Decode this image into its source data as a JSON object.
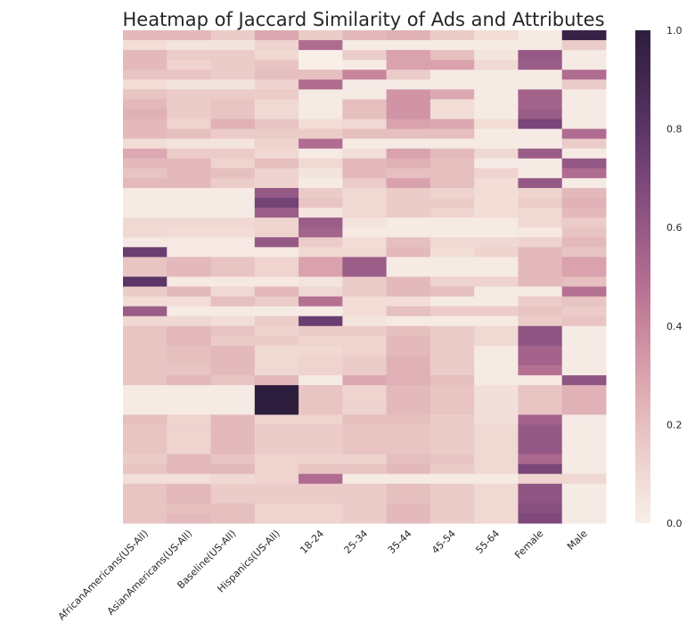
{
  "chart_data": {
    "type": "heatmap",
    "title": "Heatmap of Jaccard Similarity of Ads and Attributes",
    "xlabel": "",
    "ylabel": "",
    "columns": [
      "AfricanAmericans(US-All)",
      "AsianAmericans(US-All)",
      "Baseline(US-All)",
      "Hispanics(US-All)",
      "18-24",
      "25-34",
      "35-44",
      "45-54",
      "55-64",
      "Female",
      "Male"
    ],
    "value_range": [
      0.0,
      1.0
    ],
    "colorbar_ticks": [
      "0.0",
      "0.2",
      "0.4",
      "0.6",
      "0.8",
      "1.0"
    ],
    "colormap": [
      "#f8efe9",
      "#f0d8d3",
      "#e6bfbf",
      "#d9a2ad",
      "#c7869c",
      "#b06c90",
      "#955985",
      "#794679",
      "#5b3566",
      "#432850",
      "#2d1e3e"
    ],
    "grid": false,
    "legend": "colorbar-right",
    "rows": [
      [
        0.22,
        0.22,
        0.15,
        0.28,
        0.15,
        0.22,
        0.25,
        0.15,
        0.08,
        0.02,
        0.95
      ],
      [
        0.08,
        0.05,
        0.05,
        0.12,
        0.5,
        0.02,
        0.02,
        0.02,
        0.02,
        0.02,
        0.15
      ],
      [
        0.22,
        0.15,
        0.15,
        0.1,
        0.0,
        0.15,
        0.3,
        0.2,
        0.05,
        0.6,
        0.02
      ],
      [
        0.22,
        0.12,
        0.15,
        0.18,
        0.0,
        0.02,
        0.3,
        0.3,
        0.1,
        0.58,
        0.02
      ],
      [
        0.18,
        0.18,
        0.15,
        0.2,
        0.2,
        0.4,
        0.15,
        0.02,
        0.02,
        0.02,
        0.5
      ],
      [
        0.08,
        0.05,
        0.05,
        0.12,
        0.5,
        0.02,
        0.02,
        0.02,
        0.02,
        0.02,
        0.15
      ],
      [
        0.18,
        0.15,
        0.15,
        0.15,
        0.02,
        0.02,
        0.35,
        0.28,
        0.02,
        0.55,
        0.02
      ],
      [
        0.22,
        0.15,
        0.18,
        0.1,
        0.02,
        0.2,
        0.35,
        0.08,
        0.02,
        0.55,
        0.02
      ],
      [
        0.25,
        0.15,
        0.18,
        0.1,
        0.02,
        0.2,
        0.35,
        0.08,
        0.02,
        0.58,
        0.02
      ],
      [
        0.22,
        0.12,
        0.25,
        0.18,
        0.08,
        0.1,
        0.3,
        0.28,
        0.08,
        0.7,
        0.02
      ],
      [
        0.22,
        0.2,
        0.15,
        0.15,
        0.15,
        0.2,
        0.2,
        0.2,
        0.02,
        0.02,
        0.5
      ],
      [
        0.08,
        0.05,
        0.05,
        0.12,
        0.5,
        0.02,
        0.02,
        0.02,
        0.02,
        0.02,
        0.15
      ],
      [
        0.28,
        0.15,
        0.15,
        0.1,
        0.02,
        0.08,
        0.3,
        0.22,
        0.1,
        0.58,
        0.02
      ],
      [
        0.22,
        0.22,
        0.12,
        0.2,
        0.1,
        0.22,
        0.25,
        0.2,
        0.02,
        0.02,
        0.6
      ],
      [
        0.18,
        0.22,
        0.2,
        0.12,
        0.05,
        0.22,
        0.2,
        0.2,
        0.12,
        0.02,
        0.5
      ],
      [
        0.22,
        0.22,
        0.15,
        0.12,
        0.02,
        0.15,
        0.3,
        0.2,
        0.08,
        0.6,
        0.02
      ],
      [
        0.02,
        0.02,
        0.02,
        0.6,
        0.15,
        0.1,
        0.15,
        0.12,
        0.08,
        0.12,
        0.22
      ],
      [
        0.02,
        0.02,
        0.02,
        0.72,
        0.18,
        0.1,
        0.15,
        0.15,
        0.08,
        0.15,
        0.25
      ],
      [
        0.02,
        0.02,
        0.02,
        0.58,
        0.05,
        0.1,
        0.15,
        0.12,
        0.08,
        0.1,
        0.22
      ],
      [
        0.1,
        0.1,
        0.1,
        0.12,
        0.58,
        0.05,
        0.02,
        0.02,
        0.02,
        0.1,
        0.15
      ],
      [
        0.1,
        0.08,
        0.08,
        0.12,
        0.55,
        0.02,
        0.02,
        0.02,
        0.02,
        0.03,
        0.18
      ],
      [
        0.03,
        0.03,
        0.03,
        0.6,
        0.15,
        0.08,
        0.2,
        0.1,
        0.1,
        0.12,
        0.22
      ],
      [
        0.75,
        0.03,
        0.03,
        0.03,
        0.1,
        0.1,
        0.22,
        0.08,
        0.12,
        0.22,
        0.18
      ],
      [
        0.18,
        0.22,
        0.18,
        0.12,
        0.3,
        0.58,
        0.02,
        0.02,
        0.02,
        0.22,
        0.3
      ],
      [
        0.18,
        0.22,
        0.18,
        0.12,
        0.3,
        0.58,
        0.02,
        0.02,
        0.02,
        0.22,
        0.3
      ],
      [
        0.8,
        0.03,
        0.03,
        0.03,
        0.05,
        0.15,
        0.22,
        0.12,
        0.12,
        0.22,
        0.2
      ],
      [
        0.15,
        0.22,
        0.1,
        0.22,
        0.1,
        0.15,
        0.22,
        0.2,
        0.02,
        0.02,
        0.48
      ],
      [
        0.08,
        0.08,
        0.2,
        0.15,
        0.48,
        0.08,
        0.08,
        0.02,
        0.02,
        0.15,
        0.18
      ],
      [
        0.58,
        0.02,
        0.02,
        0.02,
        0.02,
        0.08,
        0.2,
        0.15,
        0.15,
        0.18,
        0.15
      ],
      [
        0.1,
        0.1,
        0.08,
        0.15,
        0.75,
        0.05,
        0.02,
        0.02,
        0.02,
        0.15,
        0.18
      ],
      [
        0.18,
        0.22,
        0.18,
        0.12,
        0.15,
        0.15,
        0.2,
        0.15,
        0.1,
        0.62,
        0.02
      ],
      [
        0.18,
        0.22,
        0.15,
        0.15,
        0.12,
        0.12,
        0.22,
        0.15,
        0.1,
        0.62,
        0.02
      ],
      [
        0.18,
        0.2,
        0.22,
        0.1,
        0.1,
        0.12,
        0.22,
        0.15,
        0.03,
        0.55,
        0.02
      ],
      [
        0.18,
        0.2,
        0.22,
        0.1,
        0.12,
        0.15,
        0.25,
        0.15,
        0.02,
        0.55,
        0.02
      ],
      [
        0.18,
        0.18,
        0.22,
        0.1,
        0.12,
        0.15,
        0.25,
        0.15,
        0.02,
        0.48,
        0.02
      ],
      [
        0.18,
        0.22,
        0.18,
        0.22,
        0.02,
        0.28,
        0.25,
        0.2,
        0.02,
        0.03,
        0.62
      ],
      [
        0.02,
        0.02,
        0.02,
        1.0,
        0.18,
        0.12,
        0.22,
        0.18,
        0.07,
        0.18,
        0.25
      ],
      [
        0.02,
        0.02,
        0.02,
        1.0,
        0.18,
        0.12,
        0.22,
        0.18,
        0.07,
        0.18,
        0.25
      ],
      [
        0.02,
        0.02,
        0.02,
        1.0,
        0.18,
        0.12,
        0.22,
        0.18,
        0.07,
        0.18,
        0.25
      ],
      [
        0.2,
        0.12,
        0.22,
        0.12,
        0.12,
        0.2,
        0.2,
        0.15,
        0.07,
        0.55,
        0.02
      ],
      [
        0.18,
        0.12,
        0.22,
        0.15,
        0.15,
        0.18,
        0.18,
        0.15,
        0.1,
        0.6,
        0.02
      ],
      [
        0.18,
        0.12,
        0.22,
        0.15,
        0.15,
        0.18,
        0.18,
        0.15,
        0.1,
        0.6,
        0.02
      ],
      [
        0.18,
        0.12,
        0.22,
        0.15,
        0.15,
        0.18,
        0.18,
        0.15,
        0.1,
        0.6,
        0.02
      ],
      [
        0.15,
        0.22,
        0.18,
        0.12,
        0.12,
        0.12,
        0.2,
        0.18,
        0.1,
        0.52,
        0.02
      ],
      [
        0.18,
        0.22,
        0.22,
        0.12,
        0.18,
        0.18,
        0.22,
        0.15,
        0.1,
        0.7,
        0.02
      ],
      [
        0.07,
        0.07,
        0.1,
        0.12,
        0.5,
        0.02,
        0.02,
        0.02,
        0.02,
        0.12,
        0.1
      ],
      [
        0.18,
        0.22,
        0.15,
        0.15,
        0.15,
        0.15,
        0.2,
        0.15,
        0.1,
        0.62,
        0.02
      ],
      [
        0.18,
        0.22,
        0.15,
        0.15,
        0.15,
        0.15,
        0.2,
        0.15,
        0.1,
        0.62,
        0.02
      ],
      [
        0.18,
        0.2,
        0.2,
        0.12,
        0.12,
        0.15,
        0.22,
        0.15,
        0.1,
        0.65,
        0.02
      ],
      [
        0.18,
        0.22,
        0.2,
        0.12,
        0.12,
        0.15,
        0.22,
        0.15,
        0.1,
        0.68,
        0.02
      ]
    ]
  }
}
